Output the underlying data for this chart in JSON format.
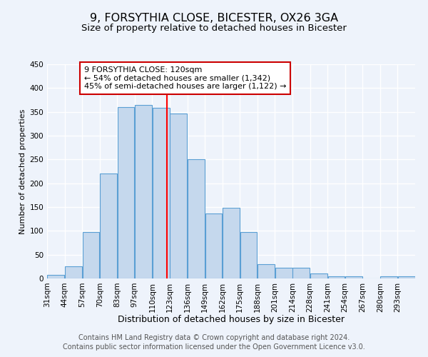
{
  "title": "9, FORSYTHIA CLOSE, BICESTER, OX26 3GA",
  "subtitle": "Size of property relative to detached houses in Bicester",
  "xlabel": "Distribution of detached houses by size in Bicester",
  "ylabel": "Number of detached properties",
  "bar_labels": [
    "31sqm",
    "44sqm",
    "57sqm",
    "70sqm",
    "83sqm",
    "97sqm",
    "110sqm",
    "123sqm",
    "136sqm",
    "149sqm",
    "162sqm",
    "175sqm",
    "188sqm",
    "201sqm",
    "214sqm",
    "228sqm",
    "241sqm",
    "254sqm",
    "267sqm",
    "280sqm",
    "293sqm"
  ],
  "bar_values": [
    8,
    26,
    98,
    220,
    360,
    365,
    358,
    347,
    250,
    137,
    148,
    97,
    30,
    22,
    22,
    10,
    4,
    4,
    0,
    4,
    4
  ],
  "bar_color": "#c5d8ed",
  "bar_edge_color": "#5a9fd4",
  "ylim": [
    0,
    450
  ],
  "yticks": [
    0,
    50,
    100,
    150,
    200,
    250,
    300,
    350,
    400,
    450
  ],
  "vline_x": 120,
  "vline_color": "red",
  "annotation_title": "9 FORSYTHIA CLOSE: 120sqm",
  "annotation_line1": "← 54% of detached houses are smaller (1,342)",
  "annotation_line2": "45% of semi-detached houses are larger (1,122) →",
  "annotation_box_color": "white",
  "annotation_box_edge_color": "#cc0000",
  "footer_line1": "Contains HM Land Registry data © Crown copyright and database right 2024.",
  "footer_line2": "Contains public sector information licensed under the Open Government Licence v3.0.",
  "background_color": "#eef3fb",
  "grid_color": "#ffffff",
  "title_fontsize": 11.5,
  "subtitle_fontsize": 9.5,
  "xlabel_fontsize": 9,
  "ylabel_fontsize": 8,
  "tick_fontsize": 7.5,
  "annotation_fontsize": 8,
  "footer_fontsize": 7
}
